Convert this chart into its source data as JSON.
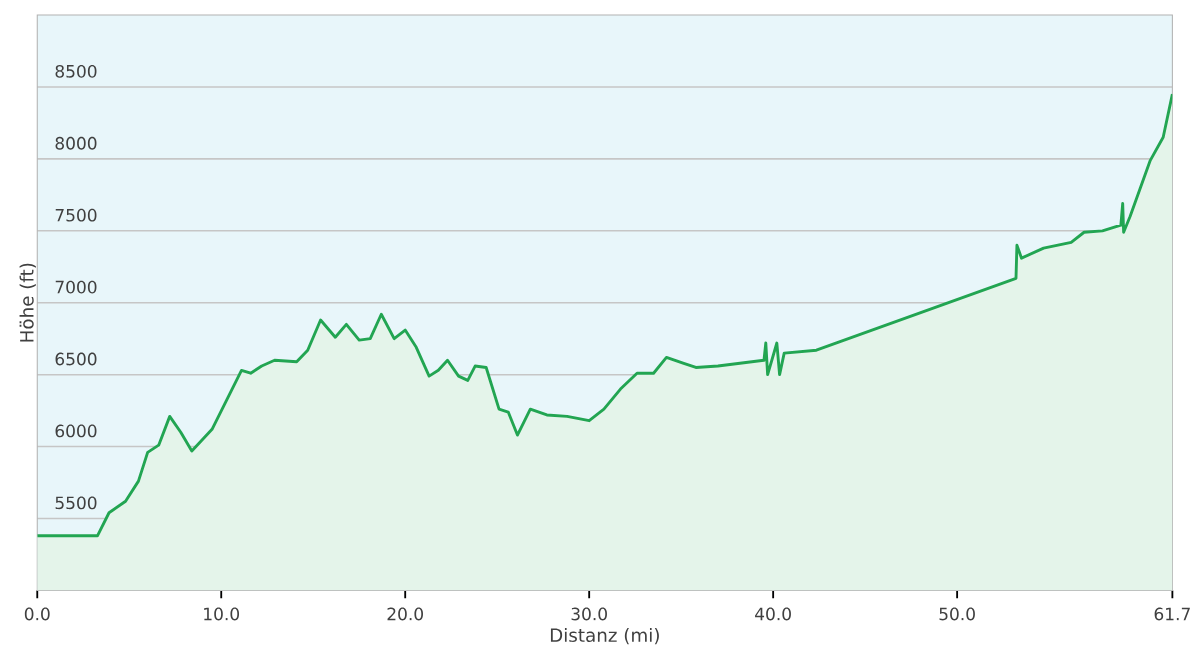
{
  "chart_data": {
    "type": "area",
    "xlabel": "Distanz  (mi)",
    "ylabel": "Höhe (ft)",
    "xlim": [
      0,
      61.7
    ],
    "ylim": [
      5000,
      9000
    ],
    "xticks": [
      {
        "value": 0,
        "label": "0.0"
      },
      {
        "value": 10,
        "label": "10.0"
      },
      {
        "value": 20,
        "label": "20.0"
      },
      {
        "value": 30,
        "label": "30.0"
      },
      {
        "value": 40,
        "label": "40.0"
      },
      {
        "value": 50,
        "label": "50.0"
      },
      {
        "value": 61.7,
        "label": "61.7"
      }
    ],
    "yticks": [
      5500,
      6000,
      6500,
      7000,
      7500,
      8000,
      8500
    ],
    "grid": "y",
    "marker": "none",
    "line_style": "solid",
    "series": [
      {
        "color": "#22a552",
        "x": [
          0,
          3.27,
          3.9,
          4.8,
          5.5,
          6.0,
          6.6,
          7.2,
          7.8,
          8.4,
          9.5,
          11.1,
          11.6,
          12.2,
          12.9,
          14.1,
          14.7,
          15.4,
          16.2,
          16.8,
          17.5,
          18.1,
          18.7,
          19.4,
          20.0,
          20.6,
          21.3,
          21.8,
          22.3,
          22.9,
          23.4,
          23.8,
          24.4,
          25.1,
          25.6,
          26.1,
          26.8,
          27.7,
          28.8,
          30.0,
          30.8,
          31.7,
          32.6,
          33.5,
          34.2,
          35.1,
          35.8,
          37.0,
          39.5,
          39.6,
          39.7,
          40.2,
          40.35,
          40.6,
          42.35,
          53.2,
          53.25,
          53.5,
          54.7,
          56.2,
          56.9,
          57.9,
          58.9,
          59.0,
          59.05,
          59.4,
          60.5,
          61.2,
          61.7
        ],
        "values": [
          5380,
          5380,
          5540,
          5620,
          5760,
          5960,
          6010,
          6210,
          6100,
          5970,
          6120,
          6530,
          6510,
          6560,
          6600,
          6590,
          6670,
          6880,
          6760,
          6850,
          6740,
          6750,
          6920,
          6750,
          6810,
          6690,
          6490,
          6530,
          6600,
          6490,
          6460,
          6560,
          6550,
          6260,
          6240,
          6080,
          6260,
          6220,
          6210,
          6180,
          6260,
          6400,
          6510,
          6510,
          6620,
          6580,
          6550,
          6560,
          6600,
          6720,
          6500,
          6720,
          6500,
          6650,
          6670,
          7170,
          7400,
          7310,
          7380,
          7420,
          7490,
          7500,
          7540,
          7690,
          7490,
          7600,
          7990,
          8150,
          8450
        ]
      }
    ]
  }
}
